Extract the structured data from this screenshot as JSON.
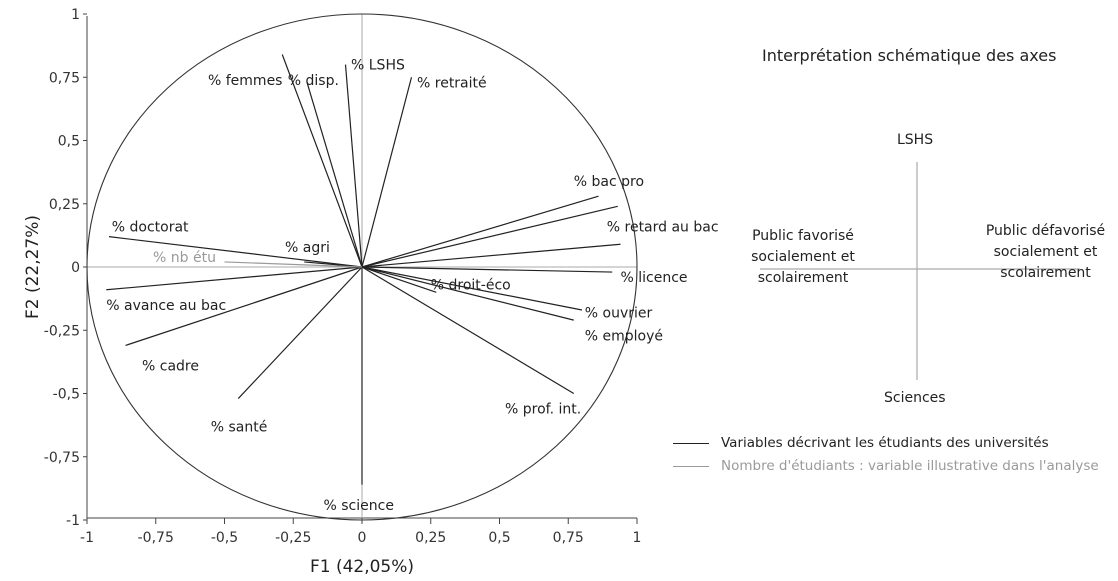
{
  "chart_data": {
    "type": "scatter",
    "subtype": "correlation-circle",
    "xlabel": "F1 (42,05%)",
    "ylabel": "F2 (22,27%)",
    "xlim": [
      -1,
      1
    ],
    "ylim": [
      -1,
      1
    ],
    "x_ticks": [
      "-1",
      "-0,75",
      "-0,5",
      "-0,25",
      "0",
      "0,25",
      "0,5",
      "0,75",
      "1"
    ],
    "y_ticks": [
      "1",
      "0,75",
      "0,5",
      "0,25",
      "0",
      "-0,25",
      "-0,5",
      "-0,75",
      "-1"
    ],
    "tick_values": [
      -1,
      -0.75,
      -0.5,
      -0.25,
      0,
      0.25,
      0.5,
      0.75,
      1
    ],
    "grid": false,
    "circle_radius": 1,
    "series": [
      {
        "name": "Variables décrivant les étudiants des universités",
        "color": "#222222",
        "points": [
          {
            "label": "% femmes",
            "x": -0.29,
            "y": 0.84
          },
          {
            "label": "% disp.",
            "x": -0.2,
            "y": 0.73
          },
          {
            "label": "% LSHS",
            "x": -0.06,
            "y": 0.8
          },
          {
            "label": "% retraité",
            "x": 0.18,
            "y": 0.75
          },
          {
            "label": "% bac pro",
            "x": 0.86,
            "y": 0.28
          },
          {
            "label": "% retard au bac",
            "x": 0.93,
            "y": 0.24
          },
          {
            "label": "% retard au bac (2)",
            "x": 0.94,
            "y": 0.09
          },
          {
            "label": "% licence",
            "x": 0.91,
            "y": -0.02
          },
          {
            "label": "% droit-éco",
            "x": 0.27,
            "y": -0.1
          },
          {
            "label": "% ouvrier",
            "x": 0.8,
            "y": -0.17
          },
          {
            "label": "% employé",
            "x": 0.77,
            "y": -0.21
          },
          {
            "label": "% prof. int.",
            "x": 0.77,
            "y": -0.5
          },
          {
            "label": "% doctorat",
            "x": -0.92,
            "y": 0.12
          },
          {
            "label": "% agri",
            "x": -0.21,
            "y": 0.02
          },
          {
            "label": "% avance au bac",
            "x": -0.93,
            "y": -0.09
          },
          {
            "label": "% cadre",
            "x": -0.86,
            "y": -0.31
          },
          {
            "label": "% santé",
            "x": -0.45,
            "y": -0.52
          },
          {
            "label": "% science",
            "x": 0.0,
            "y": -0.86
          }
        ]
      },
      {
        "name": "Nombre d'étudiants : variable illustrative dans l'analyse",
        "color": "#9a9a9a",
        "points": [
          {
            "label": "% nb étu",
            "x": -0.5,
            "y": 0.02
          }
        ]
      }
    ],
    "labels_text": {
      "femmes": "% femmes",
      "disp": "% disp.",
      "lshs": "% LSHS",
      "retraite": "% retraité",
      "bacpro": "% bac pro",
      "retard": "% retard au bac",
      "licence": "% licence",
      "droit": "% droit-éco",
      "ouvrier": "% ouvrier",
      "employe": "% employé",
      "profint": "% prof. int.",
      "doctorat": "% doctorat",
      "agri": "% agri",
      "nbetu": "% nb étu",
      "avance": "% avance au bac",
      "cadre": "% cadre",
      "sante": "% santé",
      "science": "% science"
    }
  },
  "schematic": {
    "title": "Interprétation schématique des axes",
    "top": "LSHS",
    "bottom": "Sciences",
    "left": [
      "Public favorisé",
      "socialement et",
      "scolairement"
    ],
    "right": [
      "Public défavorisé",
      "socialement et",
      "scolairement"
    ]
  },
  "legend": {
    "items": [
      {
        "label": "Variables décrivant les étudiants des universités",
        "color": "#222222"
      },
      {
        "label": "Nombre d'étudiants : variable illustrative dans l'analyse",
        "color": "#9a9a9a"
      }
    ]
  }
}
